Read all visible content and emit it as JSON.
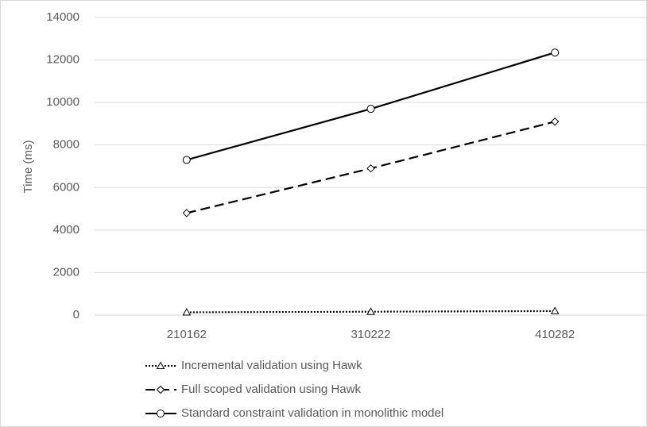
{
  "chart_data": {
    "type": "line",
    "y_label": "Time (ms)",
    "categories": [
      "210162",
      "310222",
      "410282"
    ],
    "series": [
      {
        "name": "Incremental validation using Hawk",
        "color": "#000000",
        "line_style": "dotted",
        "marker": "triangle",
        "values": [
          130,
          160,
          190
        ]
      },
      {
        "name": "Full scoped validation using Hawk",
        "color": "#000000",
        "line_style": "dashed",
        "marker": "diamond",
        "values": [
          4800,
          6900,
          9100
        ]
      },
      {
        "name": "Standard constraint validation in monolithic model",
        "color": "#000000",
        "line_style": "solid",
        "marker": "circle",
        "values": [
          7300,
          9700,
          12350
        ]
      }
    ],
    "ylim": [
      0,
      14000
    ],
    "yticks": [
      0,
      2000,
      4000,
      6000,
      8000,
      10000,
      12000,
      14000
    ],
    "grid": true,
    "legend": "bottom"
  }
}
